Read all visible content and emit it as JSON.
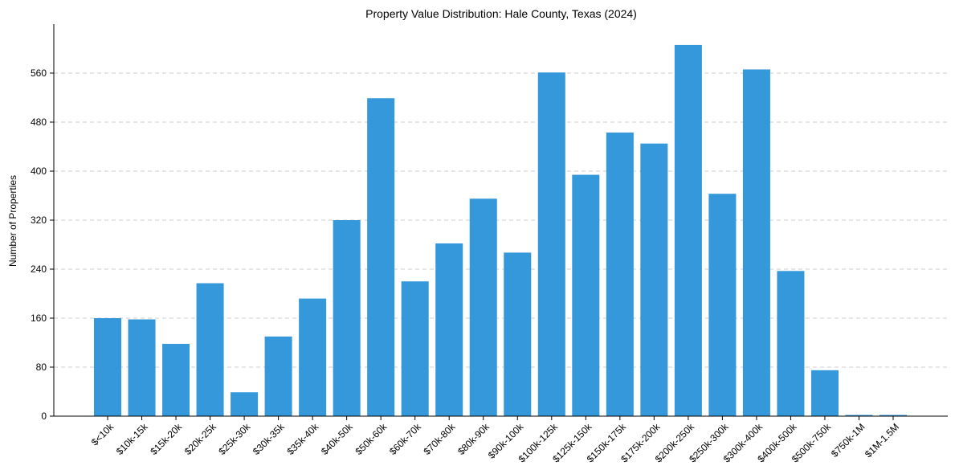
{
  "chart_data": {
    "type": "bar",
    "title": "Property Value Distribution: Hale County, Texas (2024)",
    "xlabel": "",
    "ylabel": "Number of Properties",
    "ylim": [
      0,
      640
    ],
    "yticks": [
      0,
      80,
      160,
      240,
      320,
      400,
      480,
      560
    ],
    "grid": "y-dashed",
    "color": "#3498db",
    "categories": [
      "$<10k",
      "$10k-15k",
      "$15k-20k",
      "$20k-25k",
      "$25k-30k",
      "$30k-35k",
      "$35k-40k",
      "$40k-50k",
      "$50k-60k",
      "$60k-70k",
      "$70k-80k",
      "$80k-90k",
      "$90k-100k",
      "$100k-125k",
      "$125k-150k",
      "$150k-175k",
      "$175k-200k",
      "$200k-250k",
      "$250k-300k",
      "$300k-400k",
      "$400k-500k",
      "$500k-750k",
      "$750k-1M",
      "$1M-1.5M"
    ],
    "values": [
      160,
      158,
      118,
      217,
      39,
      130,
      192,
      320,
      519,
      220,
      282,
      355,
      267,
      561,
      394,
      463,
      445,
      606,
      363,
      566,
      237,
      75,
      2,
      2
    ]
  }
}
